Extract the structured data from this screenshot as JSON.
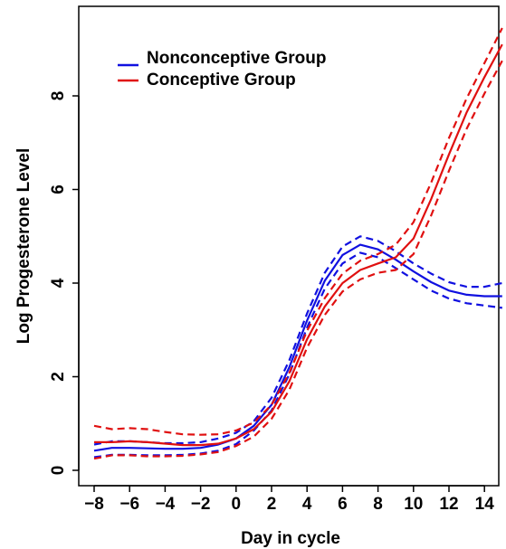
{
  "chart_data": {
    "type": "line",
    "title": "",
    "xlabel": "Day in cycle",
    "ylabel": "Log Progesterone Level",
    "xlim": [
      -8,
      15
    ],
    "ylim": [
      0,
      9.5
    ],
    "x_ticks": [
      -8,
      -6,
      -4,
      -2,
      0,
      2,
      4,
      6,
      8,
      10,
      12,
      14
    ],
    "x_tick_labels": [
      "−8",
      "−6",
      "−4",
      "−2",
      "0",
      "2",
      "4",
      "6",
      "8",
      "10",
      "12",
      "14"
    ],
    "y_ticks": [
      0,
      2,
      4,
      6,
      8
    ],
    "y_tick_labels": [
      "0",
      "2",
      "4",
      "6",
      "8"
    ],
    "grid": false,
    "legend": {
      "position": "top-left"
    },
    "colors": {
      "nonconceptive": "#1010e0",
      "conceptive": "#e01010"
    },
    "x": [
      -8,
      -7,
      -6,
      -5,
      -4,
      -3,
      -2,
      -1,
      0,
      1,
      2,
      3,
      4,
      5,
      6,
      7,
      8,
      9,
      10,
      11,
      12,
      13,
      14,
      15
    ],
    "series": [
      {
        "name": "Nonconceptive Group",
        "color": "#1010e0",
        "values": [
          0.42,
          0.48,
          0.48,
          0.47,
          0.46,
          0.46,
          0.48,
          0.55,
          0.68,
          0.95,
          1.4,
          2.2,
          3.2,
          4.05,
          4.6,
          4.82,
          4.72,
          4.5,
          4.25,
          4.02,
          3.84,
          3.75,
          3.72,
          3.72
        ]
      },
      {
        "name": "",
        "color": "#1010e0",
        "dashed": true,
        "values": [
          0.55,
          0.62,
          0.62,
          0.6,
          0.58,
          0.58,
          0.6,
          0.68,
          0.8,
          1.05,
          1.55,
          2.35,
          3.35,
          4.22,
          4.78,
          5.0,
          4.9,
          4.68,
          4.42,
          4.2,
          4.02,
          3.92,
          3.92,
          4.0
        ]
      },
      {
        "name": "",
        "color": "#1010e0",
        "dashed": true,
        "values": [
          0.28,
          0.33,
          0.33,
          0.32,
          0.32,
          0.33,
          0.36,
          0.42,
          0.56,
          0.85,
          1.28,
          2.05,
          3.05,
          3.88,
          4.42,
          4.65,
          4.55,
          4.32,
          4.08,
          3.84,
          3.67,
          3.57,
          3.52,
          3.47
        ]
      },
      {
        "name": "Conceptive Group",
        "color": "#e01010",
        "values": [
          0.6,
          0.6,
          0.62,
          0.6,
          0.57,
          0.54,
          0.54,
          0.57,
          0.68,
          0.88,
          1.25,
          1.9,
          2.8,
          3.5,
          4.0,
          4.28,
          4.42,
          4.55,
          4.95,
          5.8,
          6.75,
          7.65,
          8.4,
          9.1
        ]
      },
      {
        "name": "",
        "color": "#e01010",
        "dashed": true,
        "values": [
          0.95,
          0.88,
          0.9,
          0.88,
          0.82,
          0.77,
          0.76,
          0.77,
          0.85,
          1.02,
          1.4,
          2.08,
          2.98,
          3.68,
          4.2,
          4.48,
          4.62,
          4.82,
          5.3,
          6.15,
          7.1,
          7.95,
          8.7,
          9.45
        ]
      },
      {
        "name": "",
        "color": "#e01010",
        "dashed": true,
        "values": [
          0.25,
          0.32,
          0.32,
          0.3,
          0.3,
          0.31,
          0.34,
          0.39,
          0.52,
          0.72,
          1.1,
          1.72,
          2.62,
          3.32,
          3.82,
          4.08,
          4.22,
          4.28,
          4.62,
          5.45,
          6.4,
          7.3,
          8.05,
          8.75
        ]
      }
    ]
  }
}
